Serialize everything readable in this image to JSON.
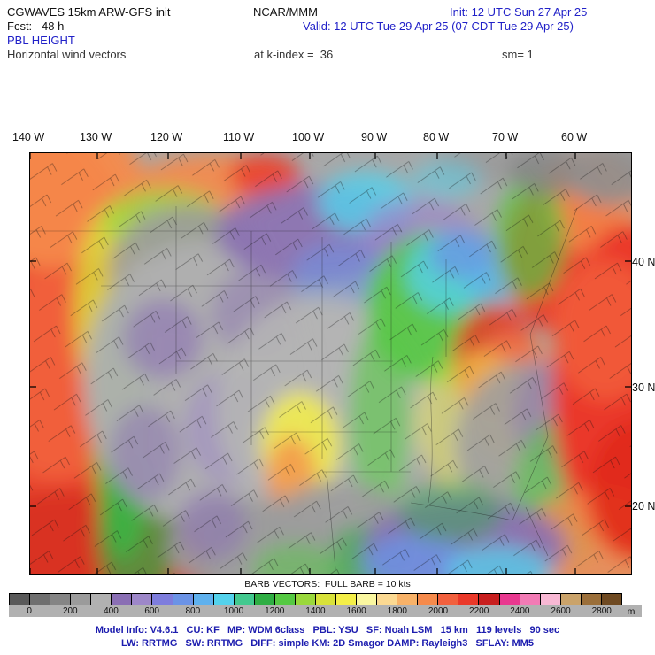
{
  "header": {
    "title": "CGWAVES 15km ARW-GFS init",
    "org": "NCAR/MMM",
    "init": "Init: 12 UTC Sun 27 Apr 25",
    "fcst": "Fcst:   48 h",
    "valid": "Valid: 12 UTC Tue 29 Apr 25 (07 CDT Tue 29 Apr 25)",
    "field": "PBL HEIGHT",
    "subtitle": "Horizontal wind vectors",
    "level": "at k-index =  36",
    "smoothing": "sm= 1"
  },
  "map": {
    "lon_labels": [
      "140 W",
      "130 W",
      "120 W",
      "110 W",
      "100 W",
      "90 W",
      "80 W",
      "70 W",
      "60 W"
    ],
    "lat_labels": [
      "40 N",
      "30 N",
      "20 N"
    ]
  },
  "legend": {
    "barb_note": "BARB VECTORS:  FULL BARB = 10 kts",
    "unit": "m",
    "tick_labels": [
      "0",
      "200",
      "400",
      "600",
      "800",
      "1000",
      "1200",
      "1400",
      "1600",
      "1800",
      "2000",
      "2200",
      "2400",
      "2600",
      "2800"
    ],
    "colors": [
      "#5a5a5a",
      "#6f6f6f",
      "#858585",
      "#9b9b9b",
      "#b1b1b1",
      "#8a6fb4",
      "#9d87c9",
      "#7e7ddd",
      "#6b93e6",
      "#5fb1ee",
      "#54d2ec",
      "#43c98f",
      "#2fae44",
      "#55c943",
      "#9ad83c",
      "#d8e23a",
      "#f4ef48",
      "#faf7a0",
      "#fbd992",
      "#f8b268",
      "#f58a4b",
      "#f2603d",
      "#ea3829",
      "#c81e1e",
      "#e8388f",
      "#f27bb5",
      "#f8b8d4",
      "#caa36a",
      "#9b6f3a",
      "#6f4a22"
    ]
  },
  "footer": {
    "line1": "Model Info: V4.6.1   CU: KF   MP: WDM 6class   PBL: YSU   SF: Noah LSM   15 km   119 levels   90 sec",
    "line2": "LW: RRTMG   SW: RRTMG   DIFF: simple KM: 2D Smagor DAMP: Rayleigh3   SFLAY: MM5"
  },
  "colors": {
    "header_accent": "#2121c8",
    "footer_accent": "#1d1daf",
    "label_strip_bg": "#b1b1b1"
  }
}
